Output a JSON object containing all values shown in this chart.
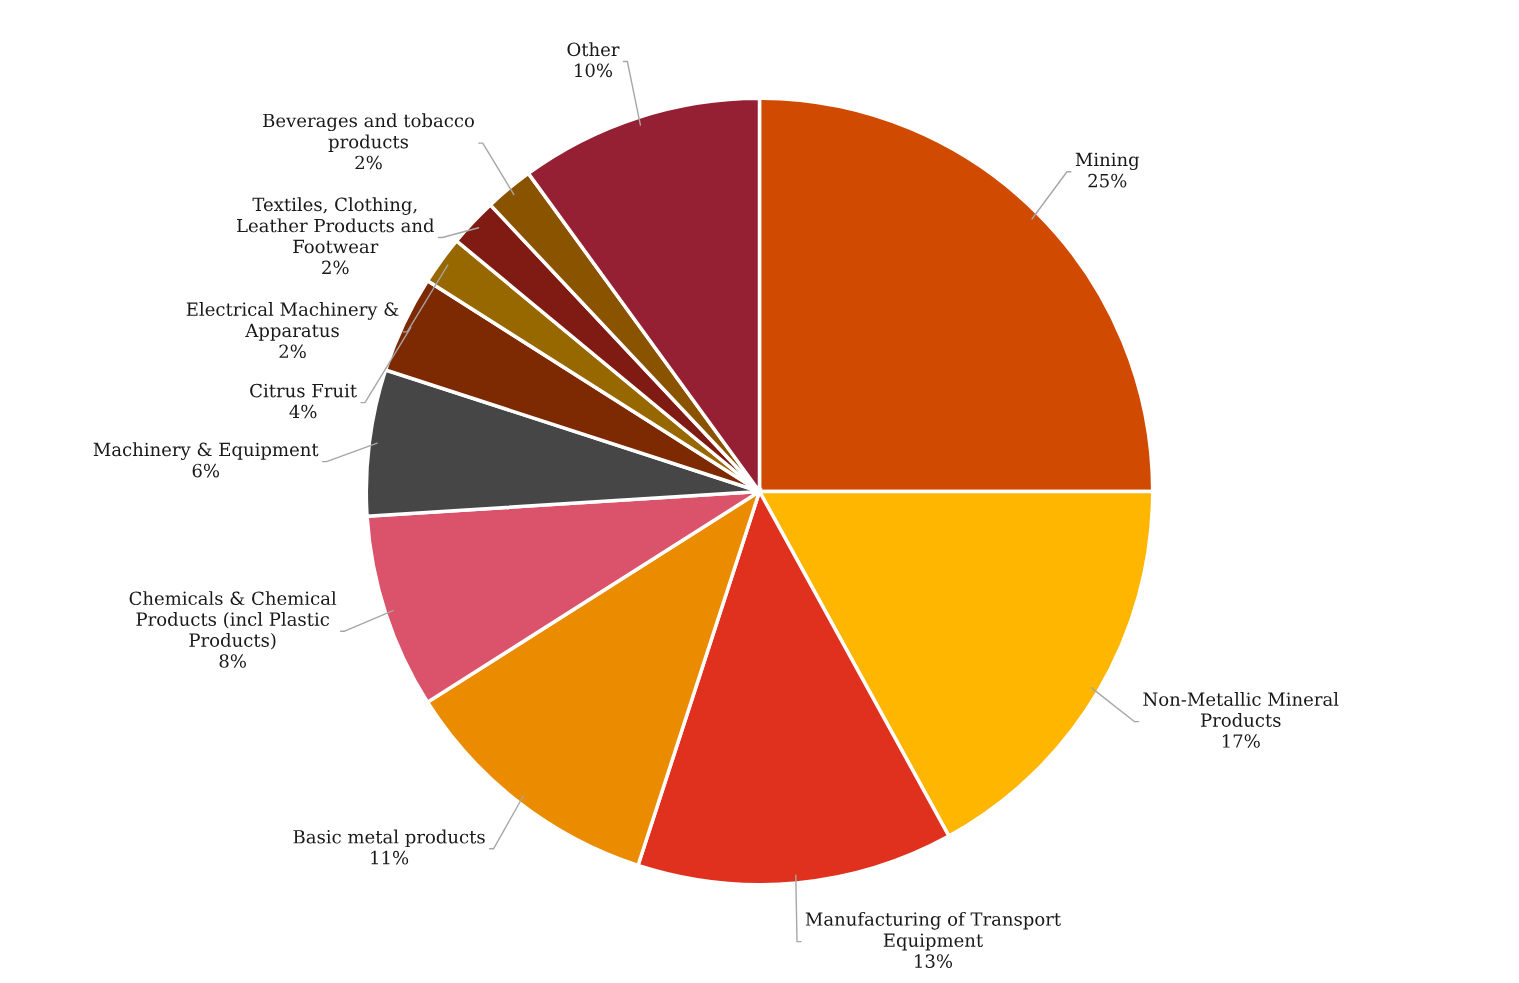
{
  "chart_data": {
    "type": "pie",
    "categories": [
      "Mining",
      "Non-Metallic Mineral Products",
      "Manufacturing of Transport Equipment",
      "Basic metal products",
      "Chemicals & Chemical Products (incl Plastic Products)",
      "Machinery & Equipment",
      "Citrus Fruit",
      "Electrical Machinery & Apparatus",
      "Textiles, Clothing, Leather Products and Footwear",
      "Beverages and tobacco products",
      "Other"
    ],
    "values": [
      25,
      17,
      13,
      11,
      8,
      6,
      4,
      2,
      2,
      2,
      10
    ],
    "colors": [
      "#d04a02",
      "#ffb600",
      "#e0301e",
      "#eb8c00",
      "#db536a",
      "#464646",
      "#7d2902",
      "#986800",
      "#7f1b12",
      "#8a5300",
      "#952034"
    ],
    "value_labels": [
      "25%",
      "17%",
      "13%",
      "11%",
      "8%",
      "6%",
      "4%",
      "2%",
      "2%",
      "2%",
      "10%"
    ]
  }
}
